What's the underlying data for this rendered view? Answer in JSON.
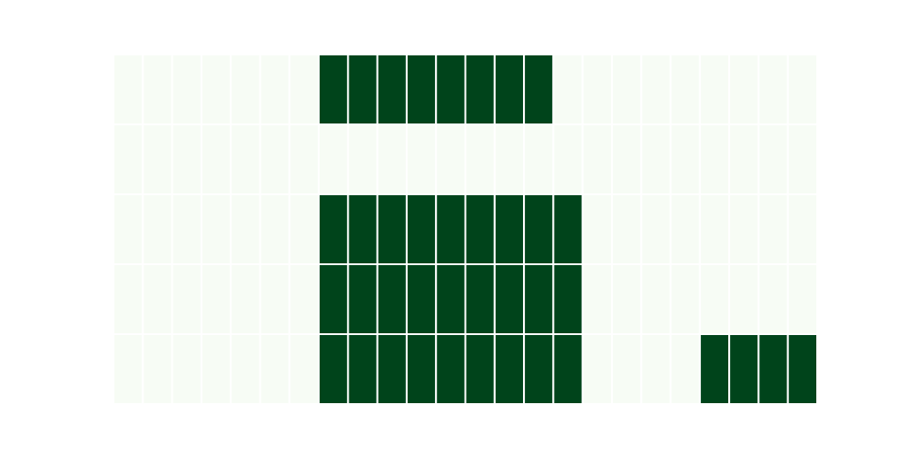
{
  "chart_data": {
    "type": "heatmap",
    "title": "",
    "xlabel": "",
    "ylabel": "",
    "rows": 5,
    "cols": 24,
    "values": [
      [
        0,
        0,
        0,
        0,
        0,
        0,
        0,
        1,
        1,
        1,
        1,
        1,
        1,
        1,
        1,
        0,
        0,
        0,
        0,
        0,
        0,
        0,
        0,
        0
      ],
      [
        0,
        0,
        0,
        0,
        0,
        0,
        0,
        0,
        0,
        0,
        0,
        0,
        0,
        0,
        0,
        0,
        0,
        0,
        0,
        0,
        0,
        0,
        0,
        0
      ],
      [
        0,
        0,
        0,
        0,
        0,
        0,
        0,
        1,
        1,
        1,
        1,
        1,
        1,
        1,
        1,
        1,
        0,
        0,
        0,
        0,
        0,
        0,
        0,
        0
      ],
      [
        0,
        0,
        0,
        0,
        0,
        0,
        0,
        1,
        1,
        1,
        1,
        1,
        1,
        1,
        1,
        1,
        0,
        0,
        0,
        0,
        0,
        0,
        0,
        0
      ],
      [
        0,
        0,
        0,
        0,
        0,
        0,
        0,
        1,
        1,
        1,
        1,
        1,
        1,
        1,
        1,
        1,
        0,
        0,
        0,
        0,
        1,
        1,
        1,
        1
      ]
    ],
    "value_range": [
      0,
      1
    ],
    "colormap": "Greens",
    "colors": {
      "low": "#f7fcf5",
      "high": "#00441b"
    },
    "grid": false,
    "legend": "none"
  }
}
